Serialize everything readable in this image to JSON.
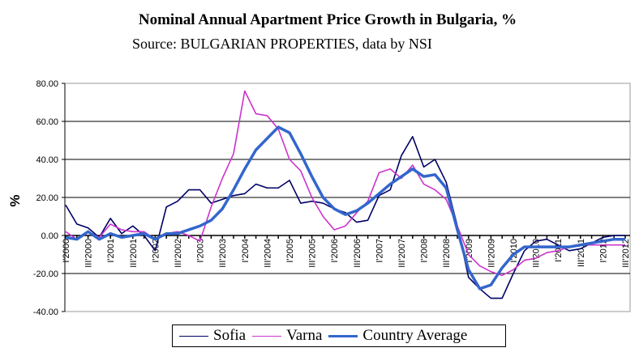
{
  "chart_data": {
    "type": "line",
    "title": "Nominal Annual Apartment Price Growth in Bulgaria, %",
    "subtitle": "Source: BULGARIAN PROPERTIES, data by NSI",
    "xlabel": "",
    "ylabel": "%",
    "ylim": [
      -40,
      80
    ],
    "y_ticks": [
      "80.00",
      "60.00",
      "40.00",
      "20.00",
      "0.00",
      "-20.00",
      "-40.00"
    ],
    "x_tick_labels": [
      "I'2000",
      "III'2000",
      "I'2001",
      "III'2001",
      "I'2002",
      "III'2002",
      "I'2003",
      "III'2003",
      "I'2004",
      "III'2004",
      "I'2005",
      "III'2005",
      "I'2006",
      "III'2006",
      "I'2007",
      "III'2007",
      "I'2008",
      "III'2008",
      "I'2009",
      "III'2009",
      "I'2010",
      "III'2010",
      "I'2011",
      "III'2011",
      "I'2012",
      "III'2012"
    ],
    "grid": true,
    "legend_placement": "bottom",
    "series": [
      {
        "name": "Sofia",
        "color": "#000066",
        "values": [
          16,
          6,
          4,
          -1,
          9,
          1,
          5,
          0,
          -8,
          15,
          18,
          24,
          24,
          17,
          19,
          21,
          22,
          27,
          25,
          25,
          29,
          17,
          18,
          17,
          14,
          12,
          7,
          8,
          21,
          24,
          42,
          52,
          36,
          40,
          28,
          5,
          -22,
          -28,
          -33,
          -33,
          -20,
          -8,
          -3,
          -2,
          -5,
          -8,
          -7,
          -4,
          -1,
          0,
          0
        ]
      },
      {
        "name": "Varna",
        "color": "#CC33CC",
        "values": [
          2,
          -2,
          2,
          -1,
          6,
          3,
          2,
          2,
          -2,
          1,
          2,
          0,
          -3,
          15,
          30,
          43,
          76,
          64,
          63,
          56,
          40,
          34,
          20,
          10,
          3,
          5,
          12,
          18,
          33,
          35,
          30,
          37,
          27,
          24,
          19,
          5,
          -10,
          -16,
          -19,
          -21,
          -18,
          -13,
          -12,
          -9,
          -8,
          -6,
          -5,
          -5,
          -5,
          -5,
          -5
        ]
      },
      {
        "name": "Country Average",
        "color": "#3366CC",
        "values": [
          -1,
          -2,
          2,
          -2,
          1,
          -1,
          0,
          1,
          -2,
          1,
          1,
          3,
          5,
          8,
          14,
          24,
          35,
          45,
          51,
          57,
          54,
          43,
          31,
          20,
          14,
          11,
          13,
          17,
          22,
          27,
          31,
          35,
          31,
          32,
          25,
          3,
          -18,
          -28,
          -26,
          -17,
          -10,
          -6,
          -6,
          -6,
          -6,
          -6,
          -5,
          -4,
          -3,
          -2,
          -2
        ]
      }
    ]
  }
}
